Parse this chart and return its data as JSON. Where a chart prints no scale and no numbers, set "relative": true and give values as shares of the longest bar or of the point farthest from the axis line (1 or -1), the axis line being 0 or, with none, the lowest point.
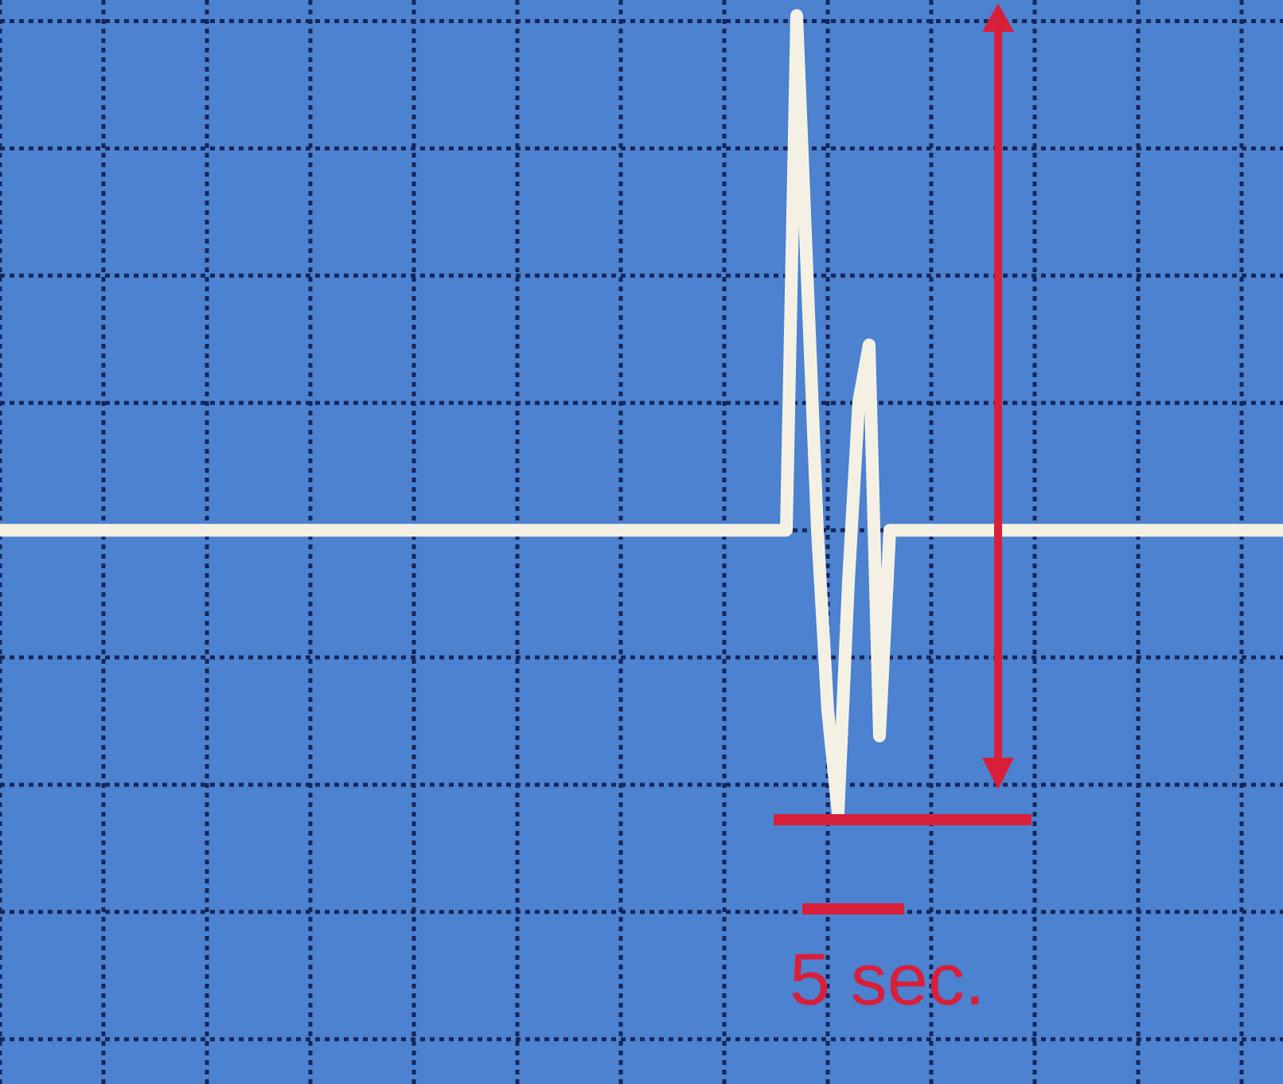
{
  "chart_data": {
    "type": "line",
    "relative": true,
    "grid": true,
    "marker": "none",
    "color": "#f4f1e4",
    "categories": [
      null,
      null,
      null,
      null,
      null,
      null,
      null,
      null,
      null,
      null,
      null,
      null,
      null,
      null,
      null,
      null,
      null,
      null,
      null,
      null,
      null,
      null,
      null,
      null,
      null,
      null,
      null,
      null,
      null,
      null,
      null,
      null,
      null,
      null,
      null,
      null,
      null,
      null,
      null,
      null,
      null,
      null,
      null,
      null,
      null,
      null,
      null,
      null,
      null,
      null,
      null,
      null,
      null,
      null,
      null,
      null,
      null,
      null,
      null,
      null,
      null,
      null,
      null,
      null,
      null,
      null,
      null,
      null,
      null,
      null,
      null,
      null,
      null,
      null,
      null,
      null,
      null,
      null,
      null,
      null,
      null,
      null,
      null,
      null,
      null,
      null,
      null,
      null,
      null,
      null,
      null,
      null,
      null,
      null,
      null,
      null,
      null,
      null,
      null,
      null,
      null,
      null,
      null,
      null,
      null,
      null,
      null,
      null,
      null,
      null,
      null,
      null,
      null,
      null,
      null,
      null,
      null,
      null,
      null,
      null,
      null,
      null,
      null,
      null,
      null
    ],
    "values": [
      0,
      0,
      0,
      0,
      0,
      0,
      0,
      0,
      0,
      0,
      0,
      0,
      0,
      0,
      0,
      0,
      0,
      0,
      0,
      0,
      0,
      0,
      0,
      0,
      0,
      0,
      0,
      0,
      0,
      0,
      0,
      0,
      0,
      0,
      0,
      0,
      0,
      0,
      0,
      0,
      0,
      0,
      0,
      0,
      0,
      0,
      0,
      0,
      0,
      0,
      0,
      0,
      0,
      0,
      0,
      0,
      0,
      0,
      0,
      0,
      0,
      0,
      0,
      0,
      0,
      0,
      0,
      0,
      0,
      0,
      0,
      0,
      0,
      0,
      0,
      0,
      0,
      1,
      0.5,
      0,
      -0.35,
      -0.55,
      -0.1,
      0.25,
      0.36,
      -0.4,
      0,
      0,
      0,
      0,
      0,
      0,
      0,
      0,
      0,
      0,
      0,
      0,
      0,
      0,
      0,
      0,
      0,
      0,
      0,
      0,
      0,
      0,
      0,
      0,
      0,
      0,
      0,
      0,
      0,
      0,
      0,
      0,
      0,
      0,
      0,
      0,
      0,
      0,
      0
    ],
    "annotations": [
      "5 sec."
    ]
  }
}
